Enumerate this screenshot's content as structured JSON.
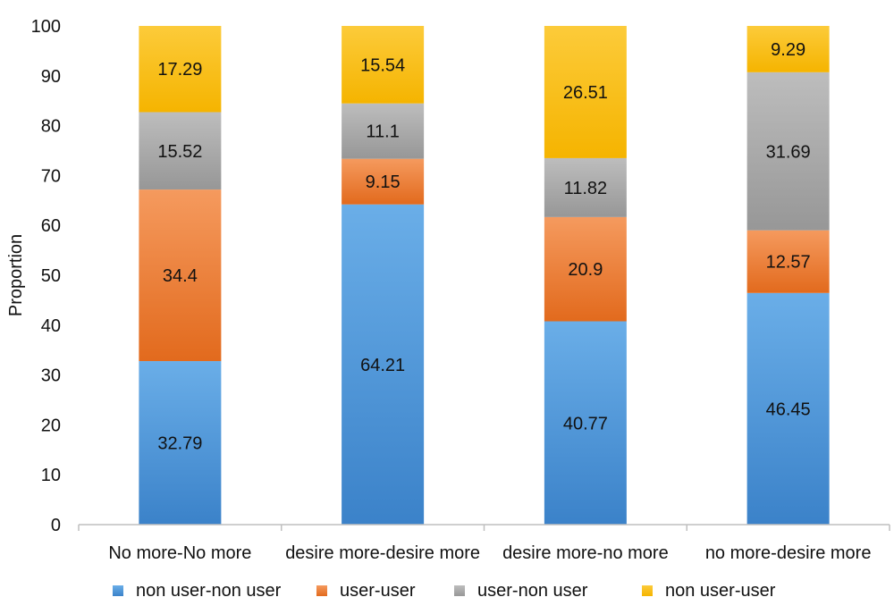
{
  "chart_data": {
    "type": "bar",
    "stacked": true,
    "title": "",
    "xlabel": "",
    "ylabel": "Proportion",
    "ylim": [
      0,
      100
    ],
    "yticks": [
      0,
      10,
      20,
      30,
      40,
      50,
      60,
      70,
      80,
      90,
      100
    ],
    "grid": false,
    "legend_position": "bottom",
    "categories": [
      "No more-No more",
      "desire more-desire more",
      "desire more-no more",
      "no more-desire more"
    ],
    "series": [
      {
        "name": "non user-non user",
        "color": "#4a8fd3",
        "values": [
          32.79,
          64.21,
          40.77,
          46.45
        ]
      },
      {
        "name": "user-user",
        "color": "#ee7d35",
        "values": [
          34.4,
          9.15,
          20.9,
          12.57
        ]
      },
      {
        "name": "user-non user",
        "color": "#a5a5a5",
        "values": [
          15.52,
          11.1,
          11.82,
          31.69
        ]
      },
      {
        "name": "non user-user",
        "color": "#fbc00a",
        "values": [
          17.29,
          15.54,
          26.51,
          9.29
        ]
      }
    ]
  }
}
